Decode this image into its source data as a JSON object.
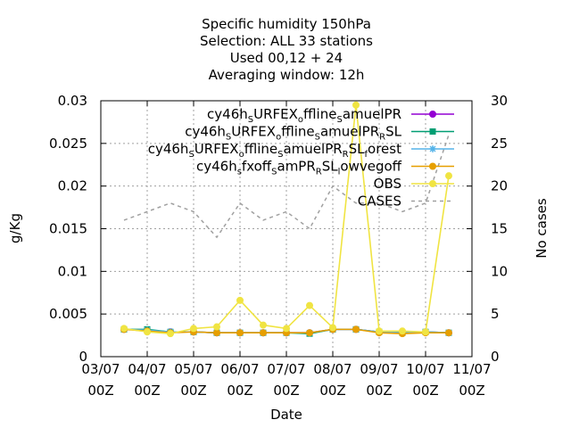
{
  "chart_data": {
    "type": "line",
    "title_lines": [
      "Specific humidity 150hPa",
      "Selection: ALL      33 stations",
      "Used  00,12  + 24",
      "Averaging window: 12h"
    ],
    "xlabel": "Date",
    "ylabel": "g/Kg",
    "y2label": "No cases",
    "grid": true,
    "legend_placement": "top-right",
    "x_ticks": [
      {
        "top": "03/07",
        "bottom": "00Z"
      },
      {
        "top": "04/07",
        "bottom": "00Z"
      },
      {
        "top": "05/07",
        "bottom": "00Z"
      },
      {
        "top": "06/07",
        "bottom": "00Z"
      },
      {
        "top": "07/07",
        "bottom": "00Z"
      },
      {
        "top": "08/07",
        "bottom": "00Z"
      },
      {
        "top": "09/07",
        "bottom": "00Z"
      },
      {
        "top": "10/07",
        "bottom": "00Z"
      },
      {
        "top": "11/07",
        "bottom": "00Z"
      }
    ],
    "xlim_days": [
      0,
      8
    ],
    "y_ticks": [
      "0",
      "0.005",
      "0.01",
      "0.015",
      "0.02",
      "0.025",
      "0.03"
    ],
    "ylim": [
      0,
      0.03
    ],
    "y2_ticks": [
      "0",
      "5",
      "10",
      "15",
      "20",
      "25",
      "30"
    ],
    "y2lim": [
      0,
      30
    ],
    "series": [
      {
        "name": "cy46h_sURFEX_offline_samuelPR",
        "label_parts": [
          [
            "cy46h",
            false
          ],
          [
            "S",
            true
          ],
          [
            "URFEX",
            false
          ],
          [
            "o",
            true
          ],
          [
            "ffline",
            false
          ],
          [
            "S",
            true
          ],
          [
            "amuelPR",
            false
          ]
        ],
        "color": "#9400d3",
        "marker": "circle",
        "axis": "y",
        "x": [
          0.5,
          1,
          1.5,
          2,
          2.5,
          3,
          3.5,
          4,
          4.5,
          5,
          5.5,
          6,
          6.5,
          7,
          7.5
        ],
        "values": [
          0.0032,
          0.0031,
          0.0029,
          0.0029,
          0.0028,
          0.0028,
          0.0028,
          0.0028,
          0.0028,
          0.0032,
          0.0032,
          0.0029,
          0.0028,
          0.0029,
          0.0028
        ]
      },
      {
        "name": "cy46h_sURFEX_offline_samuelPR_RSL",
        "label_parts": [
          [
            "cy46h",
            false
          ],
          [
            "S",
            true
          ],
          [
            "URFEX",
            false
          ],
          [
            "o",
            true
          ],
          [
            "ffline",
            false
          ],
          [
            "S",
            true
          ],
          [
            "amuelPR",
            false
          ],
          [
            "R",
            true
          ],
          [
            "SL",
            false
          ]
        ],
        "color": "#009e73",
        "marker": "square",
        "axis": "y",
        "x": [
          0.5,
          1,
          1.5,
          2,
          2.5,
          3,
          3.5,
          4,
          4.5,
          5,
          5.5,
          6,
          6.5,
          7,
          7.5
        ],
        "values": [
          0.0032,
          0.0032,
          0.0029,
          0.0029,
          0.0028,
          0.0028,
          0.0028,
          0.0028,
          0.0027,
          0.0032,
          0.0032,
          0.0029,
          0.0028,
          0.0029,
          0.0028
        ]
      },
      {
        "name": "cy46h_sURFEX_offline_samuelPR_RSL_forest",
        "label_parts": [
          [
            "cy46h",
            false
          ],
          [
            "S",
            true
          ],
          [
            "URFEX",
            false
          ],
          [
            "o",
            true
          ],
          [
            "ffline",
            false
          ],
          [
            "S",
            true
          ],
          [
            "amuelPR",
            false
          ],
          [
            "R",
            true
          ],
          [
            "SL",
            false
          ],
          [
            "f",
            true
          ],
          [
            "orest",
            false
          ]
        ],
        "color": "#56b4e9",
        "marker": "star",
        "axis": "y",
        "x": [
          0.5,
          1,
          1.5,
          2,
          2.5,
          3,
          3.5,
          4,
          4.5,
          5,
          5.5,
          6,
          6.5,
          7,
          7.5
        ],
        "values": [
          0.0032,
          0.0031,
          0.0029,
          0.0029,
          0.0028,
          0.0028,
          0.0028,
          0.0028,
          0.0028,
          0.0032,
          0.0032,
          0.0029,
          0.0028,
          0.0029,
          0.0028
        ]
      },
      {
        "name": "cy46h_sfxoff_samPR_RSL_lowvegoff",
        "label_parts": [
          [
            "cy46h",
            false
          ],
          [
            "s",
            true
          ],
          [
            "fxoff",
            false
          ],
          [
            "S",
            true
          ],
          [
            "amPR",
            false
          ],
          [
            "R",
            true
          ],
          [
            "SL",
            false
          ],
          [
            "l",
            true
          ],
          [
            "owvegoff",
            false
          ]
        ],
        "color": "#e69f00",
        "marker": "circle",
        "axis": "y",
        "x": [
          0.5,
          1,
          1.5,
          2,
          2.5,
          3,
          3.5,
          4,
          4.5,
          5,
          5.5,
          6,
          6.5,
          7,
          7.5
        ],
        "values": [
          0.0032,
          0.003,
          0.0028,
          0.0029,
          0.0028,
          0.0028,
          0.0028,
          0.0028,
          0.0028,
          0.0032,
          0.0032,
          0.0028,
          0.0027,
          0.0028,
          0.0028
        ]
      },
      {
        "name": "OBS",
        "label_parts": [
          [
            "OBS",
            false
          ]
        ],
        "color": "#f0e442",
        "marker": "circle",
        "axis": "y",
        "x": [
          0.5,
          1,
          1.5,
          2,
          2.5,
          3,
          3.5,
          4,
          4.5,
          5,
          5.5,
          6,
          6.5,
          7,
          7.5
        ],
        "values": [
          0.0033,
          0.0029,
          0.0027,
          0.0033,
          0.0035,
          0.0066,
          0.0037,
          0.0033,
          0.006,
          0.0034,
          0.0295,
          0.003,
          0.003,
          0.0029,
          0.0212
        ]
      },
      {
        "name": "CASES",
        "label_parts": [
          [
            "CASES",
            false
          ]
        ],
        "color": "#a0a0a0",
        "marker": "none",
        "dashed": true,
        "axis": "y2",
        "x": [
          0.5,
          1,
          1.5,
          2,
          2.5,
          3,
          3.5,
          4,
          4.5,
          5,
          5.5,
          6,
          6.5,
          7,
          7.5
        ],
        "values": [
          16,
          17,
          18,
          17,
          14,
          18,
          16,
          17,
          15,
          20,
          18,
          18,
          17,
          18,
          26
        ]
      }
    ]
  }
}
